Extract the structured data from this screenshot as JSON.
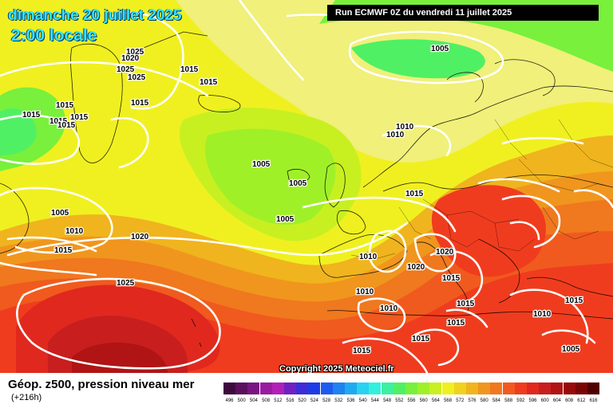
{
  "header": {
    "date": "dimanche 20 juillet 2025",
    "time": "2:00 locale",
    "run": "Run ECMWF 0Z du vendredi 11 juillet 2025"
  },
  "copyright": "Copyright 2025 Meteociel.fr",
  "footer": {
    "variable": "Géop. z500, pression niveau mer",
    "lead": "(+216h)"
  },
  "legend": {
    "ticks": [
      "496",
      "500",
      "504",
      "508",
      "512",
      "516",
      "520",
      "524",
      "528",
      "532",
      "536",
      "540",
      "544",
      "548",
      "552",
      "556",
      "560",
      "564",
      "568",
      "572",
      "576",
      "580",
      "584",
      "588",
      "592",
      "596",
      "600",
      "604",
      "608",
      "612",
      "616"
    ],
    "colors": [
      "#3d0a3d",
      "#5c0f5c",
      "#7a1480",
      "#9a1aa0",
      "#b020b8",
      "#7020c0",
      "#3c2dd6",
      "#1e3ce6",
      "#1e5af0",
      "#1e82f0",
      "#1eaaf0",
      "#28d2f0",
      "#32f0dc",
      "#3cf0a0",
      "#50f064",
      "#78f03c",
      "#a0f028",
      "#c8f020",
      "#f0f020",
      "#f0d21e",
      "#f0b41e",
      "#f0961e",
      "#f0781e",
      "#f05a1e",
      "#f03c1e",
      "#e0281e",
      "#c81e1e",
      "#b01414",
      "#960a0a",
      "#7a0505",
      "#500000"
    ]
  },
  "isobar_labels": [
    "1025",
    "1020",
    "1025",
    "1025",
    "1015",
    "1015",
    "1015",
    "1015",
    "1015",
    "1015",
    "1015",
    "1015",
    "1005",
    "1010",
    "1010",
    "1005",
    "1005",
    "1005",
    "1005",
    "1010",
    "1015",
    "1015",
    "1020",
    "1025",
    "1010",
    "1020",
    "1020",
    "1015",
    "1010",
    "1010",
    "1015",
    "1015",
    "1015",
    "1015",
    "1005",
    "1010",
    "1015"
  ]
}
